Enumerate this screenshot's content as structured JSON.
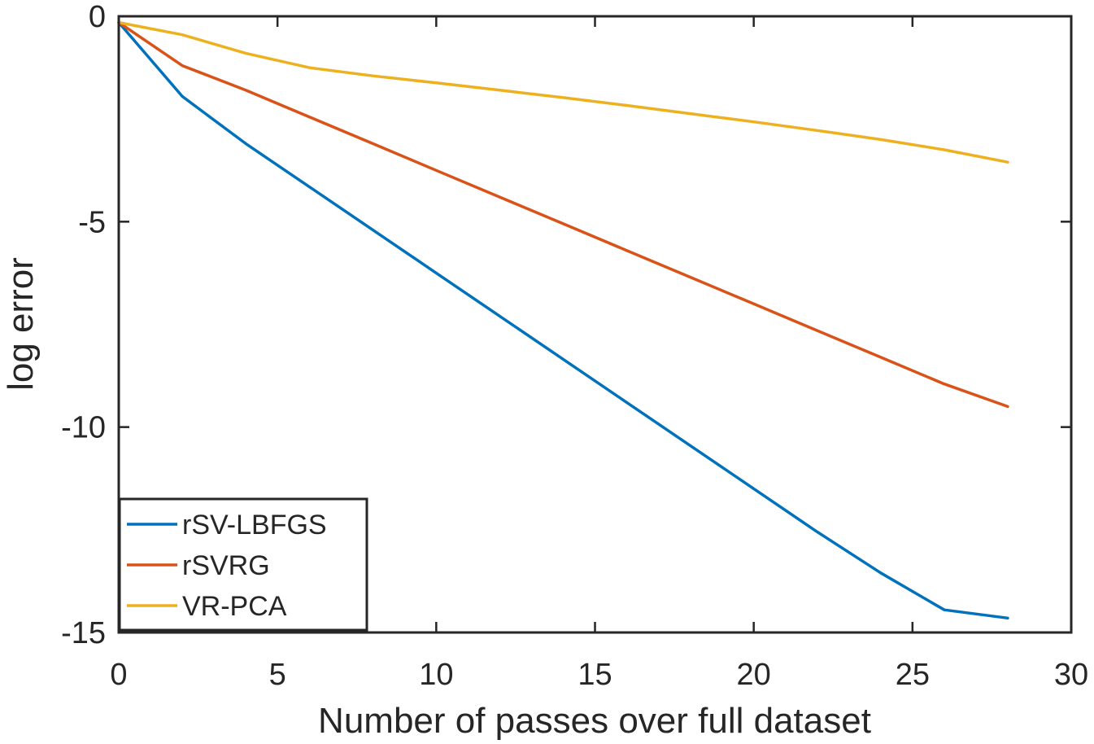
{
  "chart_data": {
    "type": "line",
    "title": "",
    "xlabel": "Number of passes over full dataset",
    "ylabel": "log error",
    "xlim": [
      0,
      30
    ],
    "ylim": [
      -15,
      0
    ],
    "xticks": [
      0,
      5,
      10,
      15,
      20,
      25,
      30
    ],
    "xtick_labels": [
      "0",
      "5",
      "10",
      "15",
      "20",
      "25",
      "30"
    ],
    "yticks": [
      0,
      -5,
      -10,
      -15
    ],
    "ytick_labels": [
      "0",
      "-5",
      "-10",
      "-15"
    ],
    "grid": false,
    "legend_position": "bottom-left",
    "series": [
      {
        "name": "rSV-LBFGS",
        "color": "#0072BD",
        "x": [
          0,
          2,
          4,
          6,
          8,
          10,
          12,
          14,
          16,
          18,
          20,
          22,
          24,
          26,
          28
        ],
        "y": [
          -0.15,
          -1.95,
          -3.1,
          -4.15,
          -5.2,
          -6.25,
          -7.3,
          -8.35,
          -9.4,
          -10.45,
          -11.5,
          -12.55,
          -13.55,
          -14.45,
          -14.65
        ]
      },
      {
        "name": "rSVRG",
        "color": "#D95319",
        "x": [
          0,
          2,
          4,
          6,
          8,
          10,
          12,
          14,
          16,
          18,
          20,
          22,
          24,
          26,
          28
        ],
        "y": [
          -0.15,
          -1.2,
          -1.8,
          -2.45,
          -3.1,
          -3.75,
          -4.4,
          -5.05,
          -5.7,
          -6.35,
          -7.0,
          -7.65,
          -8.3,
          -8.95,
          -9.5
        ]
      },
      {
        "name": "VR-PCA",
        "color": "#EDB120",
        "x": [
          0,
          2,
          4,
          6,
          8,
          10,
          12,
          14,
          16,
          18,
          20,
          22,
          24,
          26,
          28
        ],
        "y": [
          -0.15,
          -0.45,
          -0.9,
          -1.25,
          -1.45,
          -1.62,
          -1.8,
          -1.98,
          -2.17,
          -2.37,
          -2.57,
          -2.78,
          -3.0,
          -3.25,
          -3.55
        ]
      }
    ]
  }
}
